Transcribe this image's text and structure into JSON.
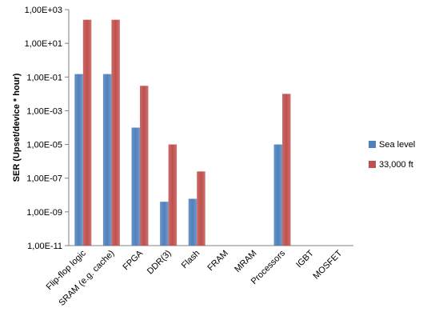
{
  "chart_data": {
    "type": "bar",
    "y_scale": "log",
    "ylabel": "SER (Upset/device * hour)",
    "ylim": [
      1e-11,
      1000
    ],
    "yticks": [
      "1,00E-11",
      "1,00E-09",
      "1,00E-07",
      "1,00E-05",
      "1,00E-03",
      "1,00E-01",
      "1,00E+01",
      "1,00E+03"
    ],
    "categories": [
      "Flip-flop logic",
      "SRAM (e.g. cache)",
      "FPGA",
      "DDR(3)",
      "Flash",
      "FRAM",
      "MRAM",
      "Processors",
      "IGBT",
      "MOSFET"
    ],
    "series": [
      {
        "name": "Sea level",
        "color": "#4f81bd",
        "values": [
          0.15,
          0.15,
          0.0001,
          4e-09,
          6e-09,
          null,
          null,
          1e-05,
          null,
          null
        ]
      },
      {
        "name": "33,000 ft",
        "color": "#c0504d",
        "values": [
          250,
          250,
          0.03,
          1e-05,
          2.5e-07,
          null,
          null,
          0.01,
          null,
          null
        ]
      }
    ],
    "grid": false,
    "legend_position": "right"
  }
}
